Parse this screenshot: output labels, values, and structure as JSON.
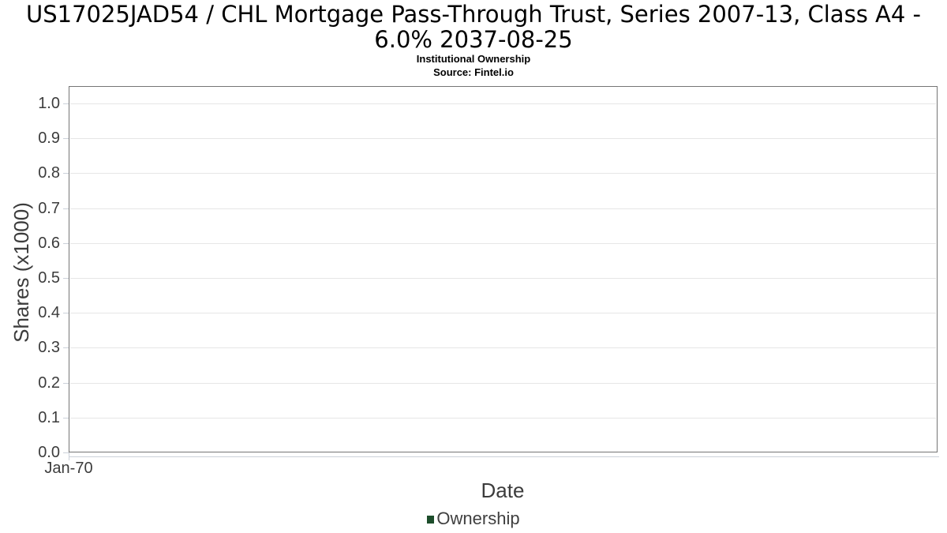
{
  "header": {
    "title_line1": "US17025JAD54 / CHL Mortgage Pass-Through Trust, Series 2007-13, Class A4 -",
    "title_line2": "6.0% 2037-08-25",
    "subtitle": "Institutional Ownership",
    "source": "Source: Fintel.io"
  },
  "chart_data": {
    "type": "line",
    "title": "US17025JAD54 / CHL Mortgage Pass-Through Trust, Series 2007-13, Class A4 - 6.0% 2037-08-25",
    "subtitle": "Institutional Ownership",
    "source": "Source: Fintel.io",
    "xlabel": "Date",
    "ylabel": "Shares (x1000)",
    "x_tick_labels": [
      "Jan-70"
    ],
    "y_ticks": [
      0.0,
      0.1,
      0.2,
      0.3,
      0.4,
      0.5,
      0.6,
      0.7,
      0.8,
      0.9,
      1.0
    ],
    "y_tick_labels": [
      "0.0",
      "0.1",
      "0.2",
      "0.3",
      "0.4",
      "0.5",
      "0.6",
      "0.7",
      "0.8",
      "0.9",
      "1.0"
    ],
    "ylim": [
      0,
      1.05
    ],
    "grid": true,
    "legend": {
      "position": "bottom",
      "entries": [
        {
          "label": "Ownership",
          "color": "#1d4d2b"
        }
      ]
    },
    "series": [
      {
        "name": "Ownership",
        "color": "#1d4d2b",
        "x": [],
        "values": []
      }
    ]
  },
  "colors": {
    "grid": "#e6e6e6",
    "plot_border": "#757575",
    "axis_line": "#ccd1d9",
    "tick_label": "#3c3c3c",
    "axis_title": "#3c3c3c",
    "legend_marker": "#1d4d2b"
  }
}
